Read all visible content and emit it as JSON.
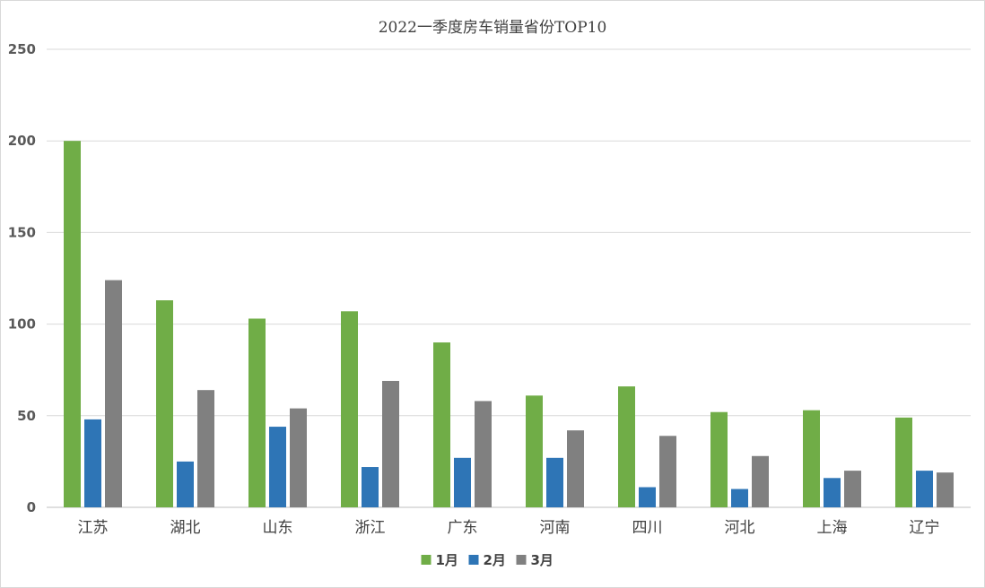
{
  "chart_data": {
    "type": "bar",
    "title": "2022一季度房车销量省份TOP10",
    "xlabel": "",
    "ylabel": "",
    "ylim": [
      0,
      250
    ],
    "yticks": [
      0,
      50,
      100,
      150,
      200,
      250
    ],
    "grid": true,
    "legend_position": "bottom",
    "categories": [
      "江苏",
      "湖北",
      "山东",
      "浙江",
      "广东",
      "河南",
      "四川",
      "河北",
      "上海",
      "辽宁"
    ],
    "series": [
      {
        "name": "1月",
        "color": "#70ad47",
        "values": [
          200,
          113,
          103,
          107,
          90,
          61,
          66,
          52,
          53,
          49
        ]
      },
      {
        "name": "2月",
        "color": "#2e75b6",
        "values": [
          48,
          25,
          44,
          22,
          27,
          27,
          11,
          10,
          16,
          20
        ]
      },
      {
        "name": "3月",
        "color": "#808080",
        "values": [
          124,
          64,
          54,
          69,
          58,
          42,
          39,
          28,
          20,
          19
        ]
      }
    ]
  }
}
